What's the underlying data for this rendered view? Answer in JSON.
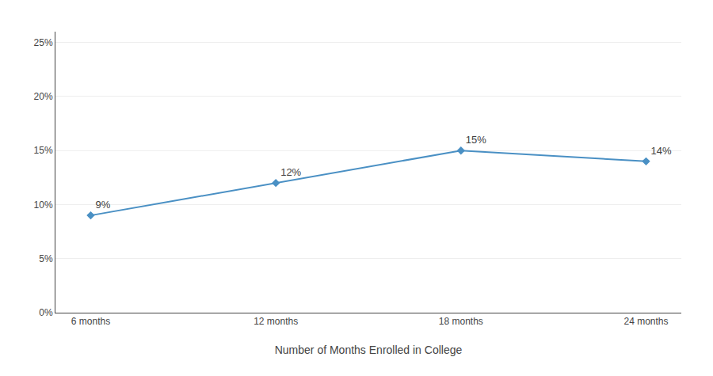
{
  "chart_data": {
    "type": "line",
    "xlabel": "Number of Months Enrolled in College",
    "categories": [
      "6 months",
      "12 months",
      "18 months",
      "24 months"
    ],
    "values": [
      0.09,
      0.12,
      0.15,
      0.14
    ],
    "value_labels": [
      "9%",
      "12%",
      "15%",
      "14%"
    ],
    "data_labels": true,
    "color": "#4a90c4",
    "marker": "diamond",
    "ylim": [
      0,
      0.26
    ],
    "yticks": [
      {
        "value": 0.0,
        "label": "0%"
      },
      {
        "value": 0.05,
        "label": "5%"
      },
      {
        "value": 0.1,
        "label": "10%"
      },
      {
        "value": 0.15,
        "label": "15%"
      },
      {
        "value": 0.2,
        "label": "20%"
      },
      {
        "value": 0.25,
        "label": "25%"
      }
    ],
    "grid": true
  }
}
